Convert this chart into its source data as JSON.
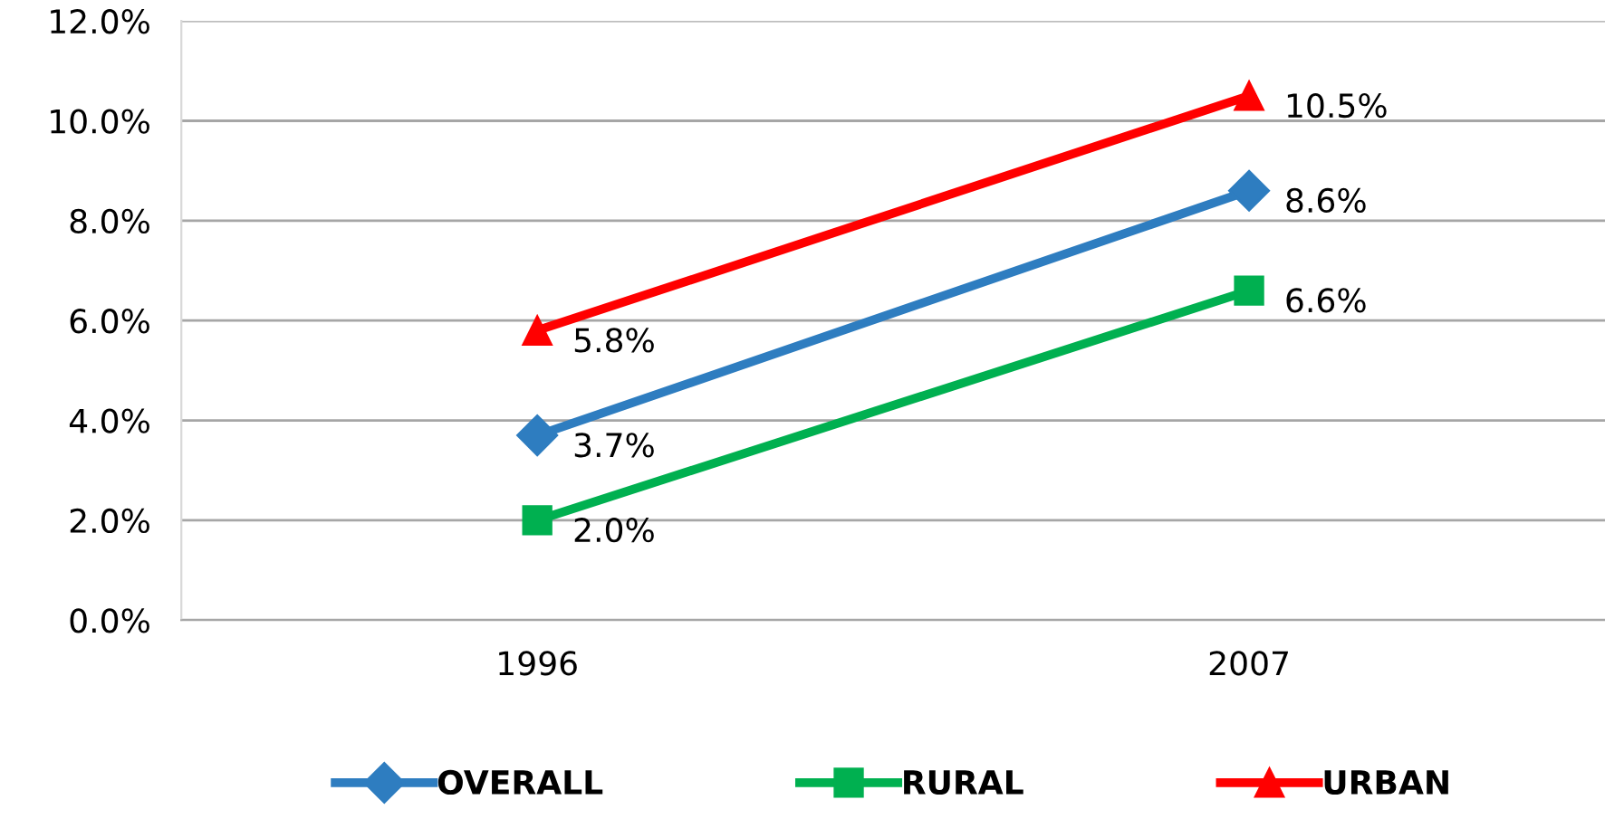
{
  "chart_data": {
    "type": "line",
    "categories": [
      "1996",
      "2007"
    ],
    "series": [
      {
        "name": "OVERALL",
        "color": "#2e7dc0",
        "marker": "diamond",
        "values": [
          3.7,
          8.6
        ],
        "value_labels": [
          "3.7%",
          "8.6%"
        ]
      },
      {
        "name": "RURAL",
        "color": "#00b050",
        "marker": "square",
        "values": [
          2.0,
          6.6
        ],
        "value_labels": [
          "2.0%",
          "6.6%"
        ]
      },
      {
        "name": "URBAN",
        "color": "#ff0000",
        "marker": "triangle",
        "values": [
          5.8,
          10.5
        ],
        "value_labels": [
          "5.8%",
          "10.5%"
        ]
      }
    ],
    "ylim": [
      0,
      12
    ],
    "yticks": [
      {
        "value": 0,
        "label": "0.0%"
      },
      {
        "value": 2,
        "label": "2.0%"
      },
      {
        "value": 4,
        "label": "4.0%"
      },
      {
        "value": 6,
        "label": "6.0%"
      },
      {
        "value": 8,
        "label": "8.0%"
      },
      {
        "value": 10,
        "label": "10.0%"
      },
      {
        "value": 12,
        "label": "12.0%"
      }
    ],
    "grid": "y",
    "legend": "bottom",
    "line_style": "solid"
  }
}
